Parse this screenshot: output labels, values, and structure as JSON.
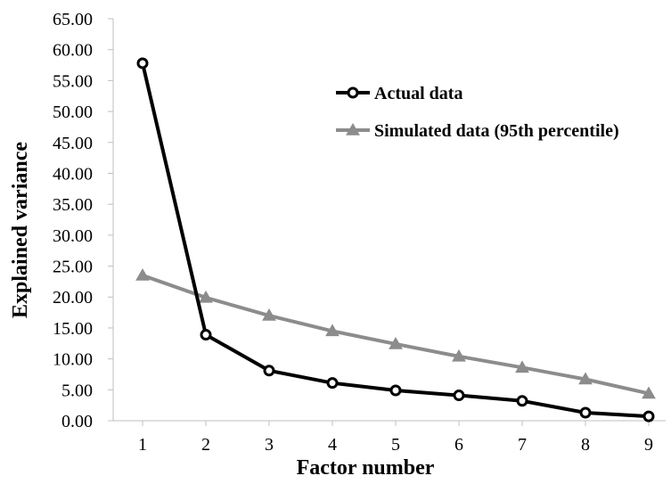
{
  "chart_data": {
    "type": "line",
    "xlabel": "Factor number",
    "ylabel": "Explained variance",
    "x": [
      1,
      2,
      3,
      4,
      5,
      6,
      7,
      8,
      9
    ],
    "ylim": [
      0,
      65
    ],
    "y_ticks": [
      "0.00",
      "5.00",
      "10.00",
      "15.00",
      "20.00",
      "25.00",
      "30.00",
      "35.00",
      "40.00",
      "45.00",
      "50.00",
      "55.00",
      "60.00",
      "65.00"
    ],
    "x_ticks": [
      "1",
      "2",
      "3",
      "4",
      "5",
      "6",
      "7",
      "8",
      "9"
    ],
    "grid": false,
    "legend_position": "top-right",
    "series": [
      {
        "name": "Actual data",
        "color": "#000000",
        "marker": "circle",
        "values": [
          57.8,
          13.9,
          8.1,
          6.1,
          4.9,
          4.1,
          3.2,
          1.3,
          0.7
        ]
      },
      {
        "name": "Simulated data (95th percentile)",
        "color": "#8c8c8c",
        "marker": "triangle",
        "values": [
          23.5,
          19.9,
          17.0,
          14.5,
          12.4,
          10.4,
          8.6,
          6.7,
          4.4
        ]
      }
    ]
  }
}
